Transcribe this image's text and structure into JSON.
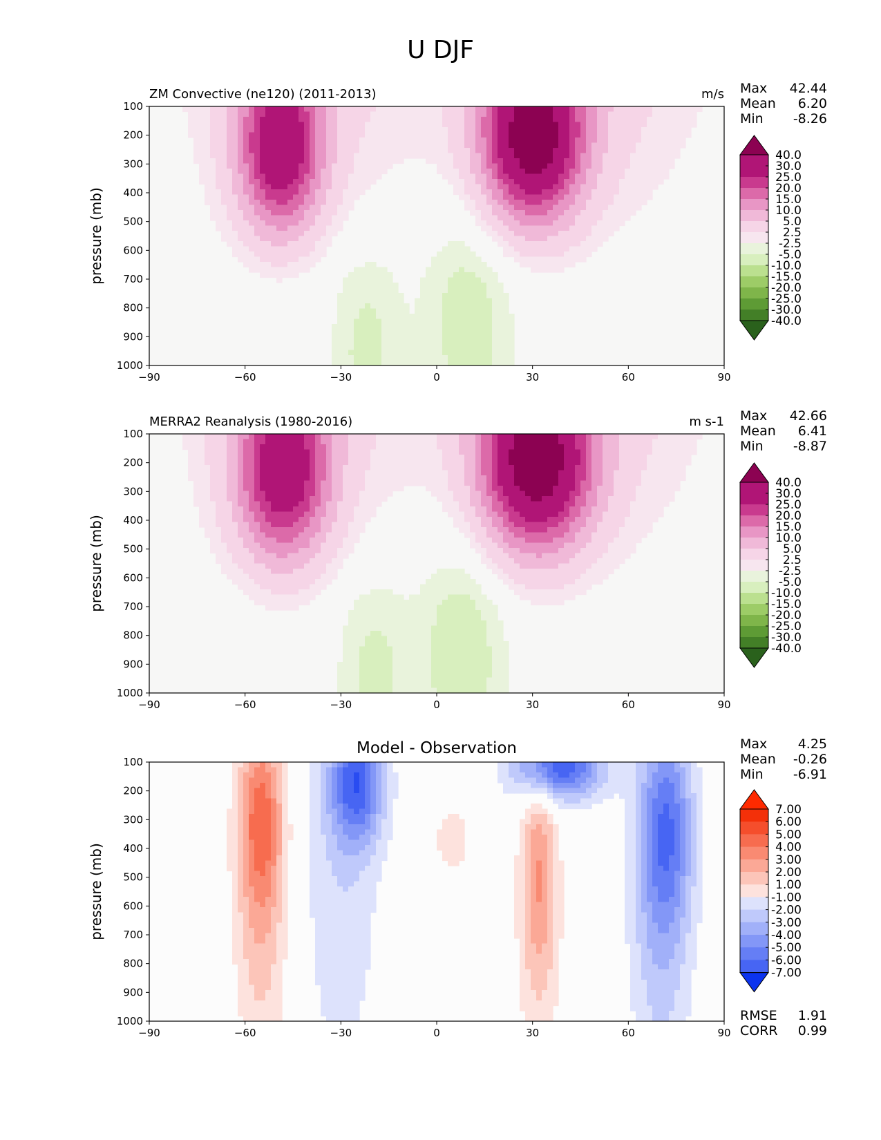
{
  "title": "U DJF",
  "x_ticks": [
    "−90",
    "−60",
    "−30",
    "0",
    "30",
    "60",
    "90"
  ],
  "y_ticks": [
    "100",
    "200",
    "300",
    "400",
    "500",
    "600",
    "700",
    "800",
    "900",
    "1000"
  ],
  "ylabel": "pressure (mb)",
  "stat_labels": {
    "max": "Max",
    "mean": "Mean",
    "min": "Min",
    "rmse": "RMSE",
    "corr": "CORR"
  },
  "field_colors": {
    "pos": [
      "#f7f7f6",
      "#f7e6ef",
      "#f6d5e7",
      "#f0b9d8",
      "#e896c5",
      "#dc6aa9",
      "#c93a8e",
      "#b01576",
      "#8c0252"
    ],
    "neg": [
      "#f7f7f6",
      "#e9f3dc",
      "#d8efbe",
      "#bbe08f",
      "#9dcc67",
      "#7fb54a",
      "#5e9b35",
      "#437f27",
      "#2a611c"
    ]
  },
  "diff_colors": {
    "pos": [
      "#fcfcfc",
      "#fde2dd",
      "#fcc5b9",
      "#fba896",
      "#f98a72",
      "#f76c4f",
      "#f54e2c",
      "#f33009",
      "#ff2a00"
    ],
    "neg": [
      "#fcfcfc",
      "#dde2fc",
      "#bfc9fb",
      "#a1b0f9",
      "#8397f7",
      "#657ef5",
      "#4765f3",
      "#294cf1",
      "#0b33ef"
    ]
  },
  "panels": [
    {
      "id": "model",
      "left_title": "ZM Convective (ne120) (2011-2013)",
      "center_title": "",
      "units": "m/s",
      "stats": {
        "max": "42.44",
        "mean": "6.20",
        "min": "-8.26"
      },
      "colorbar_labels": [
        "40.0",
        "30.0",
        "25.0",
        "20.0",
        "15.0",
        "10.0",
        "5.0",
        "2.5",
        "-2.5",
        "-5.0",
        "-10.0",
        "-15.0",
        "-20.0",
        "-25.0",
        "-30.0",
        "-40.0"
      ]
    },
    {
      "id": "obs",
      "left_title": "MERRA2 Reanalysis (1980-2016)",
      "center_title": "",
      "units": "m s-1",
      "stats": {
        "max": "42.66",
        "mean": "6.41",
        "min": "-8.87"
      },
      "colorbar_labels": [
        "40.0",
        "30.0",
        "25.0",
        "20.0",
        "15.0",
        "10.0",
        "5.0",
        "2.5",
        "-2.5",
        "-5.0",
        "-10.0",
        "-15.0",
        "-20.0",
        "-25.0",
        "-30.0",
        "-40.0"
      ]
    },
    {
      "id": "diff",
      "left_title": "",
      "center_title": "Model - Observation",
      "units": "",
      "stats": {
        "max": "4.25",
        "mean": "-0.26",
        "min": "-6.91",
        "rmse": "1.91",
        "corr": "0.99"
      },
      "colorbar_labels": [
        "7.00",
        "6.00",
        "5.00",
        "4.00",
        "3.00",
        "2.00",
        "1.00",
        "-1.00",
        "-2.00",
        "-3.00",
        "-4.00",
        "-5.00",
        "-6.00",
        "-7.00"
      ]
    }
  ],
  "chart_data": [
    {
      "type": "heatmap",
      "title": "ZM Convective (ne120) (2011-2013)",
      "units": "m/s",
      "xlabel": "",
      "ylabel": "pressure (mb)",
      "xlim": [
        -90,
        90
      ],
      "ylim": [
        1000,
        100
      ],
      "levels": [
        -40,
        -30,
        -25,
        -20,
        -15,
        -10,
        -5,
        -2.5,
        2.5,
        5,
        10,
        15,
        20,
        25,
        30,
        40
      ],
      "features": [
        {
          "name": "jet",
          "lat": -49,
          "p": 250,
          "peak": 33,
          "wlat": 9,
          "wp": 200
        },
        {
          "name": "jet",
          "lat": 30,
          "p": 210,
          "peak": 42.44,
          "wlat": 11,
          "wp": 200
        },
        {
          "name": "easterly",
          "lat": 10,
          "p": 850,
          "peak": -7,
          "wlat": 10,
          "wp": 300
        },
        {
          "name": "easterly",
          "lat": -22,
          "p": 950,
          "peak": -6,
          "wlat": 8,
          "wp": 260
        }
      ],
      "stats": {
        "max": 42.44,
        "mean": 6.2,
        "min": -8.26
      }
    },
    {
      "type": "heatmap",
      "title": "MERRA2 Reanalysis (1980-2016)",
      "units": "m s-1",
      "xlabel": "",
      "ylabel": "pressure (mb)",
      "xlim": [
        -90,
        90
      ],
      "ylim": [
        1000,
        100
      ],
      "levels": [
        -40,
        -30,
        -25,
        -20,
        -15,
        -10,
        -5,
        -2.5,
        2.5,
        5,
        10,
        15,
        20,
        25,
        30,
        40
      ],
      "features": [
        {
          "name": "jet",
          "lat": -48,
          "p": 240,
          "peak": 32,
          "wlat": 10,
          "wp": 210
        },
        {
          "name": "jet",
          "lat": 31,
          "p": 200,
          "peak": 42.66,
          "wlat": 12,
          "wp": 210
        },
        {
          "name": "easterly",
          "lat": 8,
          "p": 860,
          "peak": -7.5,
          "wlat": 10,
          "wp": 300
        },
        {
          "name": "easterly",
          "lat": -20,
          "p": 950,
          "peak": -6,
          "wlat": 8,
          "wp": 260
        }
      ],
      "stats": {
        "max": 42.66,
        "mean": 6.41,
        "min": -8.87
      }
    },
    {
      "type": "heatmap",
      "title": "Model - Observation",
      "units": "",
      "xlabel": "",
      "ylabel": "pressure (mb)",
      "xlim": [
        -90,
        90
      ],
      "ylim": [
        1000,
        100
      ],
      "levels": [
        -7,
        -6,
        -5,
        -4,
        -3,
        -2,
        -1,
        1,
        2,
        3,
        4,
        5,
        6,
        7
      ],
      "features": [
        {
          "name": "pos",
          "lat": -55,
          "p": 280,
          "peak": 4.25,
          "wlat": 5,
          "wp": 220
        },
        {
          "name": "pos",
          "lat": -55,
          "p": 650,
          "peak": 2.6,
          "wlat": 6,
          "wp": 380
        },
        {
          "name": "pos",
          "lat": 32,
          "p": 450,
          "peak": 3.2,
          "wlat": 4,
          "wp": 250
        },
        {
          "name": "pos",
          "lat": 32,
          "p": 800,
          "peak": 1.6,
          "wlat": 5,
          "wp": 300
        },
        {
          "name": "pos",
          "lat": 5,
          "p": 370,
          "peak": 1.5,
          "wlat": 5,
          "wp": 100
        },
        {
          "name": "neg",
          "lat": -25,
          "p": 170,
          "peak": -6,
          "wlat": 6,
          "wp": 150
        },
        {
          "name": "neg",
          "lat": -30,
          "p": 550,
          "peak": -1.8,
          "wlat": 9,
          "wp": 480
        },
        {
          "name": "neg",
          "lat": 38,
          "p": 120,
          "peak": -6.91,
          "wlat": 10,
          "wp": 80
        },
        {
          "name": "neg",
          "lat": 72,
          "p": 320,
          "peak": -4.8,
          "wlat": 6,
          "wp": 250
        },
        {
          "name": "neg",
          "lat": 70,
          "p": 700,
          "peak": -2.5,
          "wlat": 7,
          "wp": 420
        }
      ],
      "stats": {
        "max": 4.25,
        "mean": -0.26,
        "min": -6.91,
        "rmse": 1.91,
        "corr": 0.99
      }
    }
  ]
}
